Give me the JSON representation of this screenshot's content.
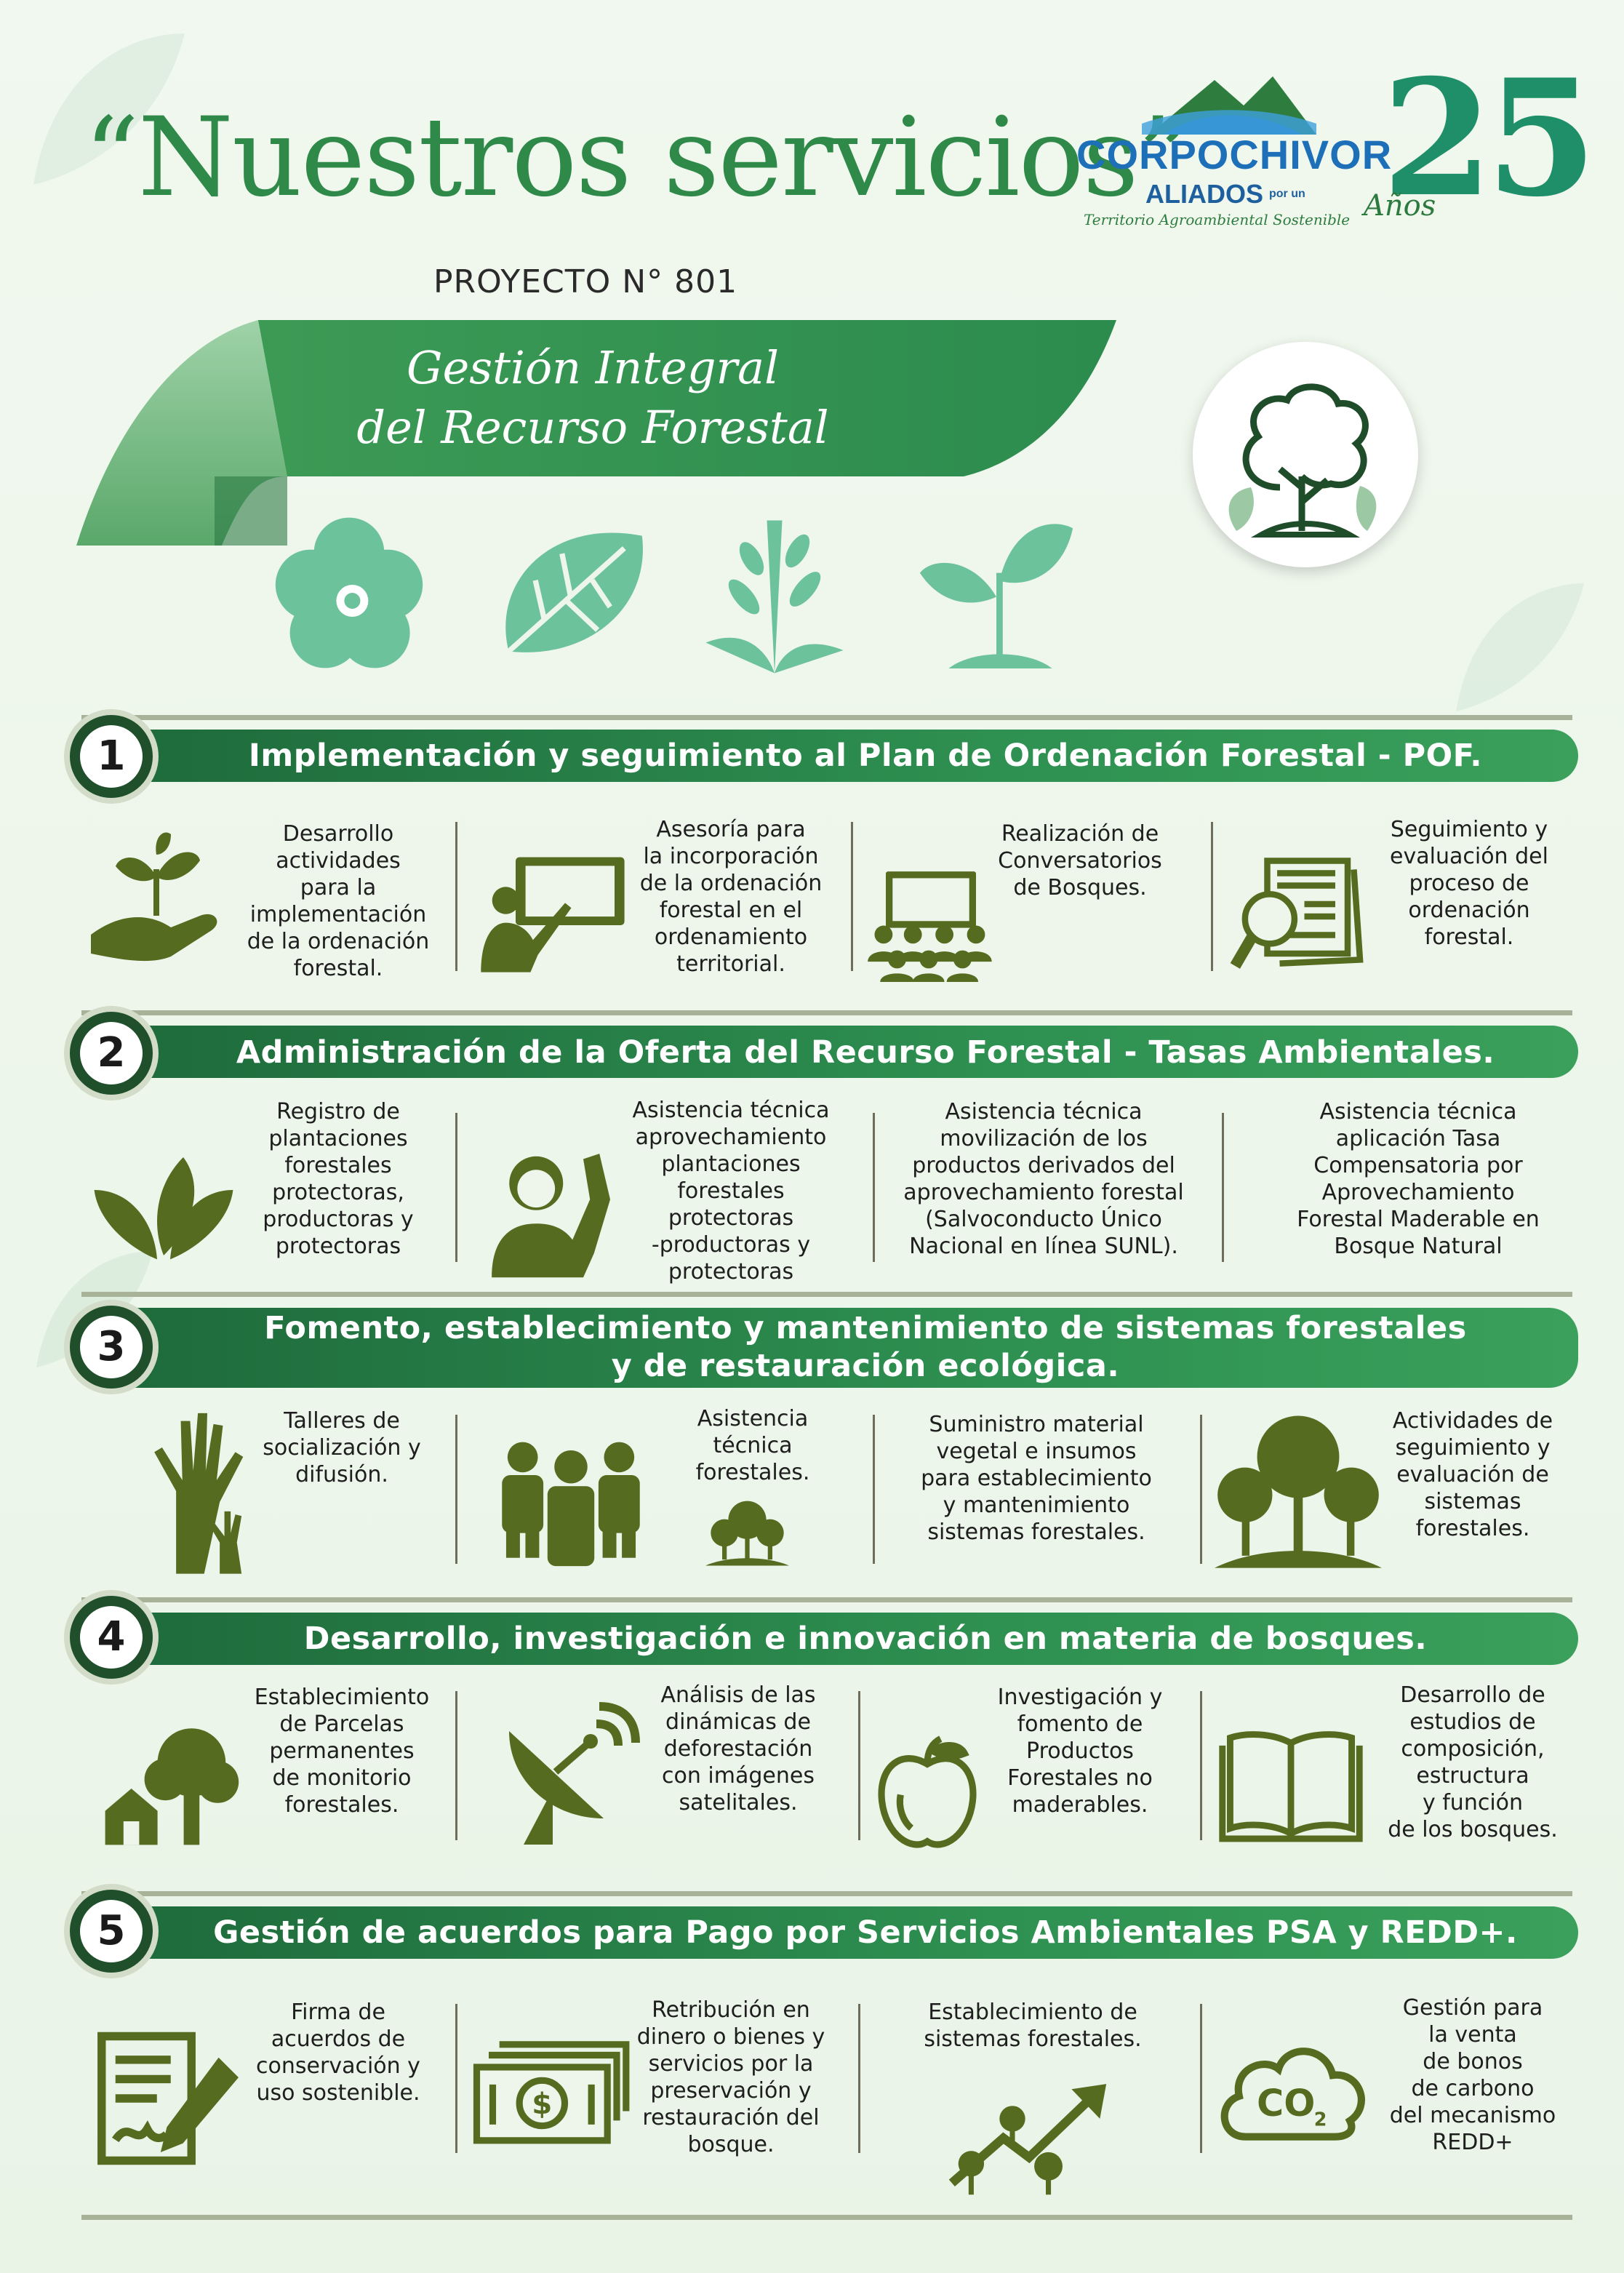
{
  "header": {
    "title": "“Nuestros servicios”",
    "project_label": "PROYECTO N° 801",
    "ribbon_line1": "Gestión Integral",
    "ribbon_line2": "del Recurso Forestal"
  },
  "logo": {
    "org_name": "CORPOCHIVOR",
    "tagline1": "ALIADOS",
    "tagline2": "por un",
    "tagline3": "Territorio Agroambiental Sostenible",
    "anniv_number": "25",
    "anniv_word": "Años"
  },
  "colors": {
    "primary": "#2e9051",
    "dark": "#1e6a3b",
    "icon": "#556b1f",
    "mint": "#6cc29a",
    "text": "#1e1e1e"
  },
  "sections": [
    {
      "number": "1",
      "title": "Implementación y seguimiento al Plan de Ordenación Forestal - POF.",
      "items": [
        {
          "icon": "hand-seedling-icon",
          "text": "Desarrollo\nactividades\npara la\nimplementación\nde la ordenación\nforestal."
        },
        {
          "icon": "teacher-board-icon",
          "text": "Asesoría para\nla incorporación\nde la ordenación\nforestal en el\nordenamiento\nterritorial."
        },
        {
          "icon": "audience-icon",
          "text": "Realización de\nConversatorios\nde Bosques."
        },
        {
          "icon": "document-magnifier-icon",
          "text": "Seguimiento y\nevaluación del\nproceso de\nordenación\nforestal."
        }
      ]
    },
    {
      "number": "2",
      "title": "Administración de la Oferta del Recurso Forestal - Tasas Ambientales.",
      "items": [
        {
          "icon": "leaves-icon",
          "text": "Registro de\nplantaciones\nforestales\nprotectoras,\nproductoras y\nprotectoras"
        },
        {
          "icon": "person-raising-hand-icon",
          "text": "Asistencia técnica\naprovechamiento\nplantaciones\nforestales\nprotectoras\n-productoras y\nprotectoras"
        },
        {
          "icon": "none",
          "text": "Asistencia técnica\nmovilización de los\nproductos derivados del\naprovechamiento forestal\n(Salvoconducto Único\nNacional en línea SUNL)."
        },
        {
          "icon": "none",
          "text": "Asistencia técnica\naplicación Tasa\nCompensatoria por\nAprovechamiento\nForestal Maderable en\nBosque Natural"
        }
      ]
    },
    {
      "number": "3",
      "title_line1": "Fomento, establecimiento y mantenimiento de sistemas forestales",
      "title_line2": "y de restauración ecológica.",
      "items": [
        {
          "icon": "raised-hands-icon",
          "text": "Talleres de\nsocialización y\ndifusión."
        },
        {
          "icon": "group-trees-icon",
          "text": "Asistencia\ntécnica\nforestales."
        },
        {
          "icon": "none",
          "text": "Suministro material\nvegetal e insumos\npara establecimiento\ny mantenimiento\nsistemas forestales."
        },
        {
          "icon": "forest-hill-icon",
          "text": "Actividades de\nseguimiento y\nevaluación de\nsistemas\nforestales."
        }
      ]
    },
    {
      "number": "4",
      "title": "Desarrollo, investigación e innovación en materia de bosques.",
      "items": [
        {
          "icon": "house-tree-icon",
          "text": "Establecimiento\nde Parcelas\npermanentes\nde monitorio\nforestales."
        },
        {
          "icon": "satellite-dish-icon",
          "text": "Análisis de las\ndinámicas de\ndeforestación\ncon imágenes\nsatelitales."
        },
        {
          "icon": "fruit-icon",
          "text": "Investigación y\nfomento de\nProductos\nForestales no\nmaderables."
        },
        {
          "icon": "open-book-icon",
          "text": "Desarrollo de\nestudios de\ncomposición,\nestructura\ny función\nde los bosques."
        }
      ]
    },
    {
      "number": "5",
      "title": "Gestión de acuerdos para Pago por Servicios Ambientales PSA y REDD+.",
      "items": [
        {
          "icon": "signed-document-icon",
          "text": "Firma de\nacuerdos de\nconservación y\nuso sostenible."
        },
        {
          "icon": "money-bill-icon",
          "text": "Retribución en\ndinero o bienes y\nservicios por la\npreservación y\nrestauración del\nbosque."
        },
        {
          "icon": "growth-trees-icon",
          "text": "Establecimiento de\nsistemas forestales."
        },
        {
          "icon": "co2-cloud-icon",
          "text": "Gestión para\nla venta\nde bonos\nde carbono\ndel mecanismo\nREDD+"
        }
      ]
    }
  ],
  "co2_label": "CO",
  "co2_sub": "2"
}
